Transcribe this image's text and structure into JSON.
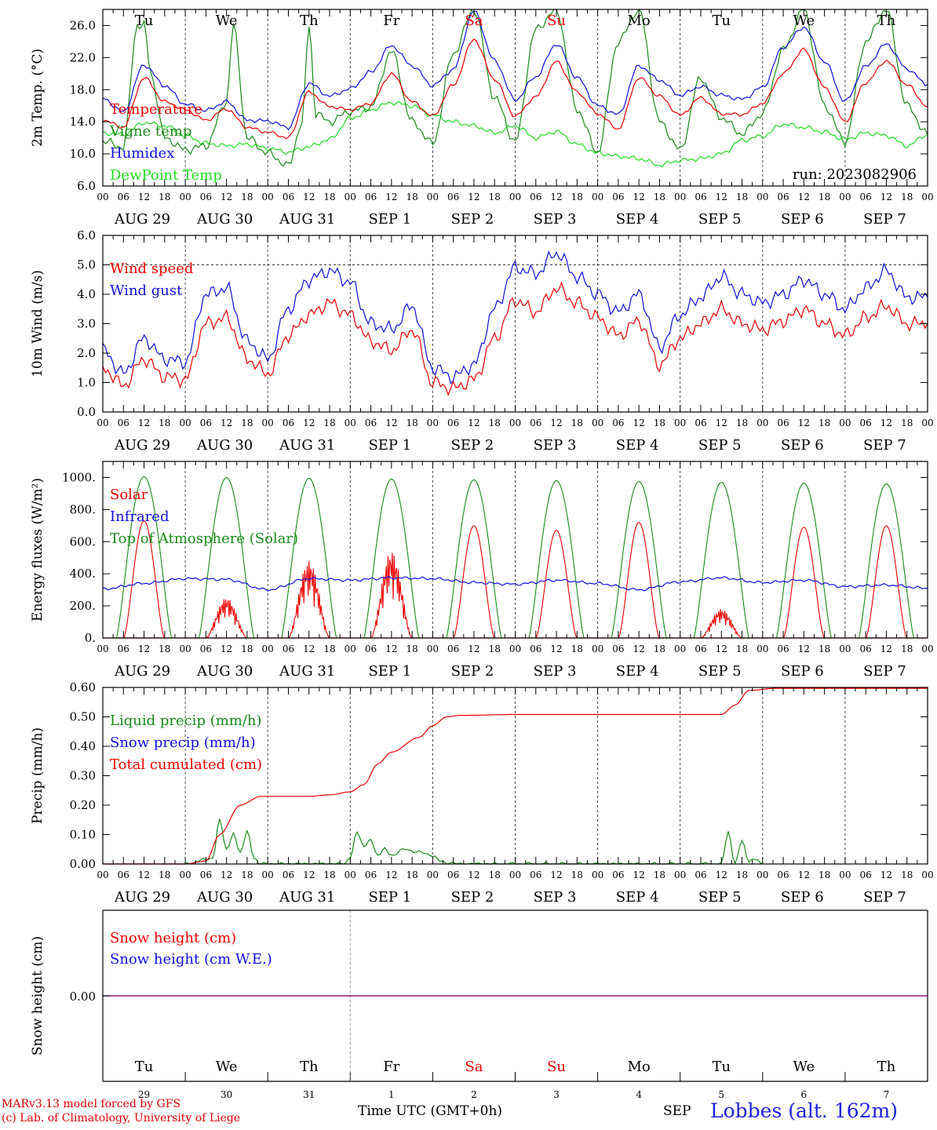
{
  "run_label": "run: 2023082906",
  "footer": {
    "model": "MARv3.13 model forced by GFS",
    "lab": "(c) Lab. of Climatology, University of Liege",
    "xaxis": "Time UTC (GMT+0h)",
    "month": "SEP",
    "station": "Lobbes (alt. 162m)"
  },
  "colors": {
    "red": "#ee0000",
    "blue": "#1010dd",
    "green": "#1a8a1a",
    "lightgreen": "#22dd22",
    "purple": "#8a1a8a",
    "weekend": "#ee0000"
  },
  "days": {
    "weekday_top": [
      "Tu",
      "We",
      "Th",
      "Fr",
      "Sa",
      "Su",
      "Mo",
      "Tu",
      "We",
      "Th"
    ],
    "weekend_index": [
      4,
      5
    ],
    "date_labels": [
      "AUG 29",
      "AUG 30",
      "AUG 31",
      "SEP  1",
      "SEP  2",
      "SEP  3",
      "SEP  4",
      "SEP  5",
      "SEP  6",
      "SEP  7"
    ],
    "day_numbers": [
      "29",
      "30",
      "31",
      "1",
      "2",
      "3",
      "4",
      "5",
      "6",
      "7"
    ],
    "hour_ticks": [
      "00",
      "06",
      "12",
      "18"
    ],
    "hour_final": "00"
  },
  "chart_data": [
    {
      "type": "line",
      "ylabel": "2m Temp. (°C)",
      "ylim": [
        6.0,
        28.0
      ],
      "yticks": [
        "6.0",
        "10.0",
        "14.0",
        "18.0",
        "22.0",
        "26.0"
      ],
      "x_unit": "hours since 2023-08-29 00 UTC",
      "legend": [
        "Temperature",
        "Vigne temp",
        "Humidex",
        "DewPoint Temp"
      ],
      "series": [
        {
          "name": "Temperature",
          "color": "red",
          "x": [
            0,
            6,
            12,
            18,
            24,
            30,
            36,
            42,
            48,
            54,
            60,
            66,
            72,
            78,
            84,
            90,
            96,
            102,
            108,
            114,
            120,
            126,
            132,
            138,
            144,
            150,
            156,
            162,
            168,
            174,
            180,
            186,
            192,
            198,
            204,
            210,
            216,
            222,
            228,
            234,
            240
          ],
          "y": [
            14.2,
            13.3,
            19.5,
            16.5,
            15.5,
            14.2,
            15.6,
            13.3,
            12.7,
            12.0,
            17.7,
            15.9,
            15.5,
            16.3,
            20.0,
            16.5,
            14.7,
            18.6,
            24.3,
            19.3,
            14.7,
            17.1,
            21.5,
            17.7,
            15.0,
            13.1,
            19.5,
            17.2,
            14.8,
            17.0,
            15.0,
            14.9,
            16.3,
            20.0,
            23.0,
            18.3,
            14.0,
            18.9,
            21.6,
            18.6,
            15.9
          ]
        },
        {
          "name": "Vigne temp",
          "color": "green",
          "x": [
            0,
            6,
            10,
            12,
            14,
            18,
            24,
            30,
            36,
            38,
            42,
            48,
            54,
            58,
            60,
            62,
            66,
            72,
            78,
            84,
            90,
            96,
            102,
            108,
            114,
            120,
            126,
            132,
            138,
            144,
            150,
            156,
            162,
            168,
            174,
            180,
            186,
            192,
            198,
            204,
            210,
            216,
            222,
            228,
            234,
            240
          ],
          "y": [
            11.6,
            10.8,
            26.0,
            26.0,
            20.0,
            12.0,
            10.5,
            11.0,
            16.5,
            26.0,
            12.0,
            10.1,
            8.5,
            14.0,
            26.0,
            15.0,
            14.0,
            15.3,
            15.8,
            22.8,
            14.0,
            11.3,
            22.5,
            28.0,
            17.0,
            11.5,
            25.5,
            28.0,
            15.5,
            10.2,
            24.0,
            28.0,
            14.0,
            10.5,
            19.5,
            14.5,
            12.5,
            15.0,
            23.0,
            28.0,
            16.0,
            11.5,
            24.0,
            28.0,
            16.0,
            12.4
          ]
        },
        {
          "name": "Humidex",
          "color": "blue",
          "x": [
            0,
            6,
            12,
            18,
            24,
            30,
            36,
            42,
            48,
            54,
            60,
            66,
            72,
            78,
            84,
            90,
            96,
            102,
            108,
            114,
            120,
            126,
            132,
            138,
            144,
            150,
            156,
            162,
            168,
            174,
            180,
            186,
            192,
            198,
            204,
            210,
            216,
            222,
            228,
            234,
            240
          ],
          "y": [
            16.9,
            15.2,
            21.1,
            18.5,
            16.2,
            15.4,
            16.5,
            14.2,
            14.1,
            13.3,
            18.8,
            17.2,
            18.1,
            20.2,
            23.5,
            21.0,
            18.5,
            20.5,
            27.8,
            21.6,
            16.7,
            19.6,
            23.7,
            19.5,
            16.0,
            14.9,
            21.0,
            19.2,
            17.3,
            18.4,
            17.3,
            16.8,
            18.3,
            23.3,
            25.8,
            21.5,
            16.5,
            20.9,
            23.7,
            20.6,
            18.6
          ]
        },
        {
          "name": "DewPoint Temp",
          "color": "lightgreen",
          "x": [
            0,
            6,
            12,
            18,
            24,
            30,
            36,
            42,
            48,
            54,
            60,
            66,
            72,
            78,
            84,
            90,
            96,
            102,
            108,
            114,
            120,
            126,
            132,
            138,
            144,
            150,
            156,
            162,
            168,
            174,
            180,
            186,
            192,
            198,
            204,
            210,
            216,
            222,
            228,
            234,
            240
          ],
          "y": [
            12.6,
            12.4,
            13.9,
            13.5,
            12.3,
            11.3,
            11.0,
            11.2,
            10.7,
            10.2,
            10.9,
            11.8,
            14.4,
            15.5,
            16.4,
            16.0,
            14.8,
            14.0,
            13.5,
            12.6,
            13.5,
            12.0,
            12.8,
            11.2,
            10.1,
            9.7,
            9.4,
            8.6,
            9.2,
            9.4,
            10.0,
            11.7,
            12.2,
            13.7,
            13.3,
            12.7,
            11.8,
            12.6,
            12.3,
            11.0,
            12.4
          ]
        }
      ]
    },
    {
      "type": "line",
      "ylabel": "10m Wind (m/s)",
      "ylim": [
        0.0,
        6.0
      ],
      "yticks": [
        "0.0",
        "1.0",
        "2.0",
        "3.0",
        "4.0",
        "5.0",
        "6.0"
      ],
      "reference_line": 5.0,
      "x_unit": "hours since 2023-08-29 00 UTC",
      "legend": [
        "Wind speed",
        "Wind gust"
      ],
      "series": [
        {
          "name": "Wind speed",
          "color": "red",
          "x": [
            0,
            6,
            12,
            18,
            24,
            30,
            36,
            42,
            48,
            54,
            60,
            66,
            72,
            78,
            84,
            90,
            96,
            102,
            108,
            114,
            120,
            126,
            132,
            138,
            144,
            150,
            156,
            162,
            168,
            174,
            180,
            186,
            192,
            198,
            204,
            210,
            216,
            222,
            228,
            234,
            240
          ],
          "y": [
            1.5,
            0.9,
            1.8,
            1.2,
            1.1,
            3.0,
            3.2,
            1.8,
            1.3,
            2.6,
            3.3,
            3.7,
            3.3,
            2.4,
            2.1,
            2.8,
            1.0,
            0.8,
            1.1,
            2.5,
            3.8,
            3.4,
            4.2,
            3.7,
            3.2,
            2.6,
            3.1,
            1.6,
            2.5,
            3.0,
            3.5,
            3.0,
            2.8,
            3.1,
            3.5,
            3.0,
            2.6,
            3.2,
            3.6,
            3.0,
            3.0
          ]
        },
        {
          "name": "Wind gust",
          "color": "blue",
          "x": [
            0,
            6,
            12,
            18,
            24,
            30,
            36,
            42,
            48,
            54,
            60,
            66,
            72,
            78,
            84,
            90,
            96,
            102,
            108,
            114,
            120,
            126,
            132,
            138,
            144,
            150,
            156,
            162,
            168,
            174,
            180,
            186,
            192,
            198,
            204,
            210,
            216,
            222,
            228,
            234,
            240
          ],
          "y": [
            2.1,
            1.3,
            2.5,
            1.8,
            1.7,
            4.0,
            4.2,
            2.4,
            1.8,
            3.5,
            4.5,
            4.8,
            4.4,
            3.0,
            2.8,
            3.6,
            1.5,
            1.2,
            1.6,
            3.5,
            4.9,
            4.7,
            5.4,
            4.6,
            4.0,
            3.4,
            4.0,
            2.2,
            3.3,
            3.9,
            4.6,
            4.0,
            3.7,
            4.0,
            4.5,
            4.0,
            3.5,
            4.2,
            4.8,
            3.9,
            3.9
          ]
        }
      ]
    },
    {
      "type": "line",
      "ylabel": "Energy fluxes (W/m²)",
      "ylim": [
        0,
        1100
      ],
      "yticks": [
        "0.",
        "200.",
        "400.",
        "600.",
        "800.",
        "1000."
      ],
      "x_unit": "hours since 2023-08-29 00 UTC",
      "legend": [
        "Solar",
        "Infrared",
        "Top of Atmosphere (Solar)"
      ],
      "toa_peaks": [
        1005,
        1000,
        995,
        990,
        985,
        980,
        975,
        970,
        965,
        960
      ],
      "solar_peaks": [
        730,
        250,
        480,
        540,
        700,
        670,
        720,
        180,
        690,
        700
      ],
      "series": [
        {
          "name": "Infrared",
          "color": "blue",
          "x": [
            0,
            12,
            24,
            36,
            48,
            60,
            72,
            84,
            96,
            108,
            120,
            132,
            144,
            156,
            168,
            180,
            192,
            204,
            216,
            228,
            240
          ],
          "y": [
            305,
            340,
            370,
            365,
            300,
            370,
            360,
            375,
            370,
            345,
            335,
            360,
            340,
            300,
            350,
            375,
            345,
            360,
            320,
            330,
            310
          ]
        }
      ]
    },
    {
      "type": "line",
      "ylabel": "Precip (mm/h)",
      "ylim": [
        0.0,
        0.6
      ],
      "yticks": [
        "0.00",
        "0.10",
        "0.20",
        "0.30",
        "0.40",
        "0.50",
        "0.60"
      ],
      "x_unit": "hours since 2023-08-29 00 UTC",
      "legend": [
        "Liquid precip (mm/h)",
        "Snow precip (mm/h)",
        "Total cumulated (cm)"
      ],
      "series": [
        {
          "name": "Total cumulated (cm)",
          "color": "red",
          "x": [
            0,
            24,
            30,
            34,
            40,
            46,
            52,
            60,
            66,
            72,
            76,
            80,
            84,
            92,
            96,
            100,
            104,
            120,
            144,
            168,
            180,
            184,
            188,
            196,
            216,
            240
          ],
          "y": [
            0.0,
            0.0,
            0.01,
            0.1,
            0.2,
            0.23,
            0.23,
            0.23,
            0.235,
            0.245,
            0.27,
            0.34,
            0.38,
            0.43,
            0.47,
            0.5,
            0.505,
            0.508,
            0.508,
            0.508,
            0.508,
            0.54,
            0.59,
            0.597,
            0.597,
            0.597
          ]
        },
        {
          "name": "Liquid precip (mm/h)",
          "color": "green",
          "x": [
            24,
            32,
            34,
            36,
            38,
            40,
            42,
            44,
            46,
            70,
            72,
            74,
            76,
            78,
            80,
            82,
            84,
            88,
            92,
            96,
            98,
            100,
            104,
            108,
            180,
            182,
            184,
            186,
            188,
            190,
            192
          ],
          "y": [
            0.0,
            0.02,
            0.15,
            0.05,
            0.1,
            0.04,
            0.11,
            0.02,
            0.0,
            0.0,
            0.02,
            0.11,
            0.06,
            0.08,
            0.03,
            0.05,
            0.03,
            0.05,
            0.04,
            0.03,
            0.01,
            0.005,
            0.0,
            0.0,
            0.0,
            0.11,
            0.0,
            0.08,
            0.01,
            0.015,
            0.0
          ]
        }
      ]
    },
    {
      "type": "line",
      "ylabel": "Snow height (cm)",
      "yticks": [
        "0.00"
      ],
      "x_unit": "hours since 2023-08-29 00 UTC",
      "legend": [
        "Snow height (cm)",
        "Snow height (cm W.E.)"
      ],
      "series": [
        {
          "name": "Snow height (cm)",
          "color": "red",
          "x": [
            0,
            240
          ],
          "y": [
            0,
            0
          ]
        },
        {
          "name": "Snow height (cm W.E.)",
          "color": "blue",
          "x": [
            0,
            240
          ],
          "y": [
            0,
            0
          ]
        }
      ]
    }
  ]
}
